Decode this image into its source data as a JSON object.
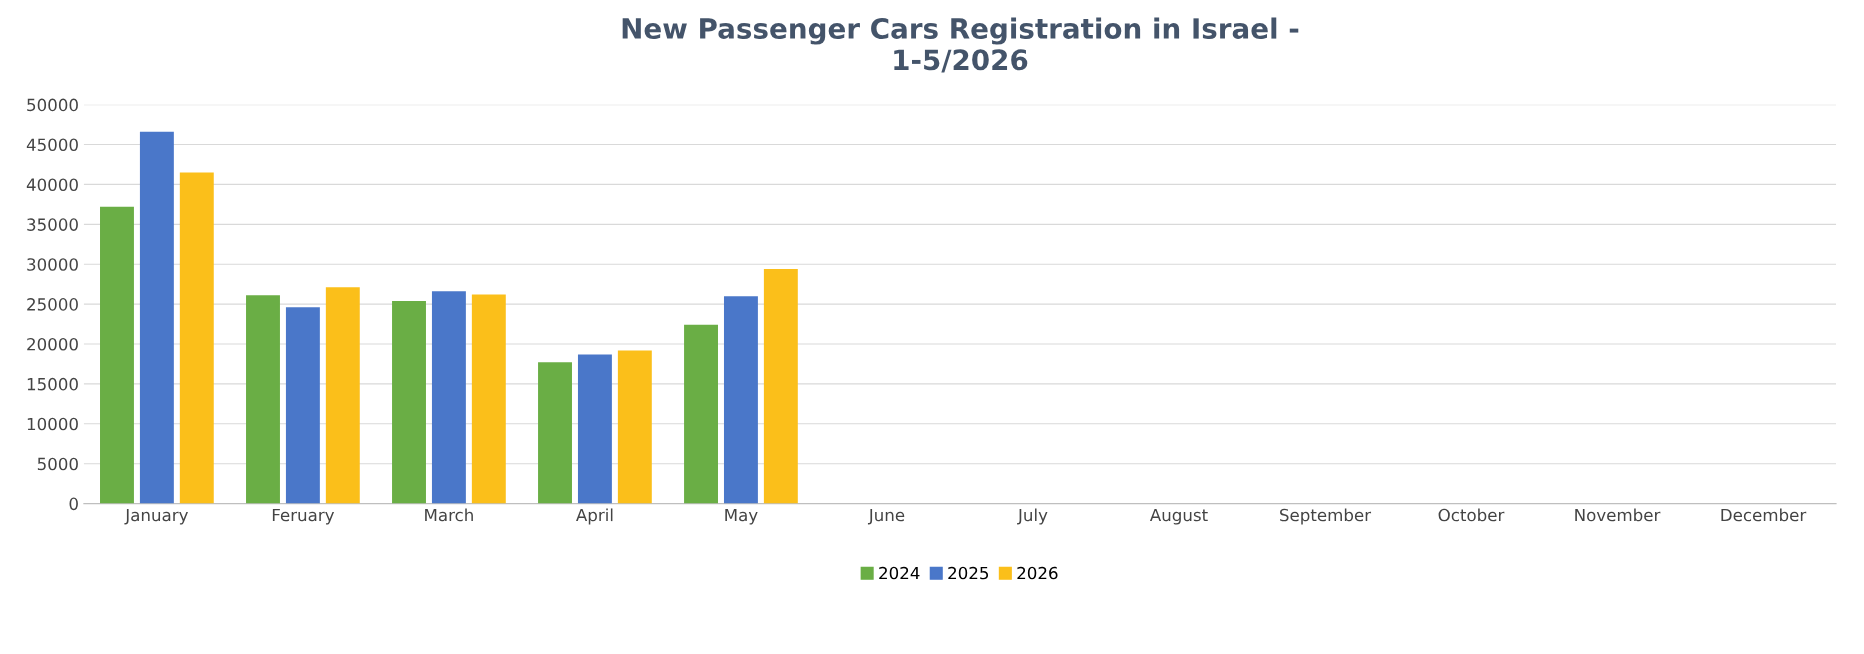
{
  "chart_data": {
    "type": "bar",
    "title": "New Passenger Cars Registration in Israel -\n1-5/2026",
    "categories": [
      "January",
      "Feruary",
      "March",
      "April",
      "May",
      "June",
      "July",
      "August",
      "September",
      "October",
      "November",
      "December"
    ],
    "series": [
      {
        "name": "2024",
        "color": "#6aae45",
        "values": [
          37200,
          26100,
          25400,
          17700,
          22400,
          null,
          null,
          null,
          null,
          null,
          null,
          null
        ]
      },
      {
        "name": "2025",
        "color": "#4a77c9",
        "values": [
          46600,
          24600,
          26600,
          18700,
          26000,
          null,
          null,
          null,
          null,
          null,
          null,
          null
        ]
      },
      {
        "name": "2026",
        "color": "#fbbf1a",
        "values": [
          41500,
          27100,
          26200,
          19200,
          29400,
          null,
          null,
          null,
          null,
          null,
          null,
          null
        ]
      }
    ],
    "ylim": [
      0,
      50000
    ],
    "yticks": [
      0,
      5000,
      10000,
      15000,
      20000,
      25000,
      30000,
      35000,
      40000,
      45000,
      50000
    ],
    "grid": "y",
    "legend": "bottom"
  }
}
